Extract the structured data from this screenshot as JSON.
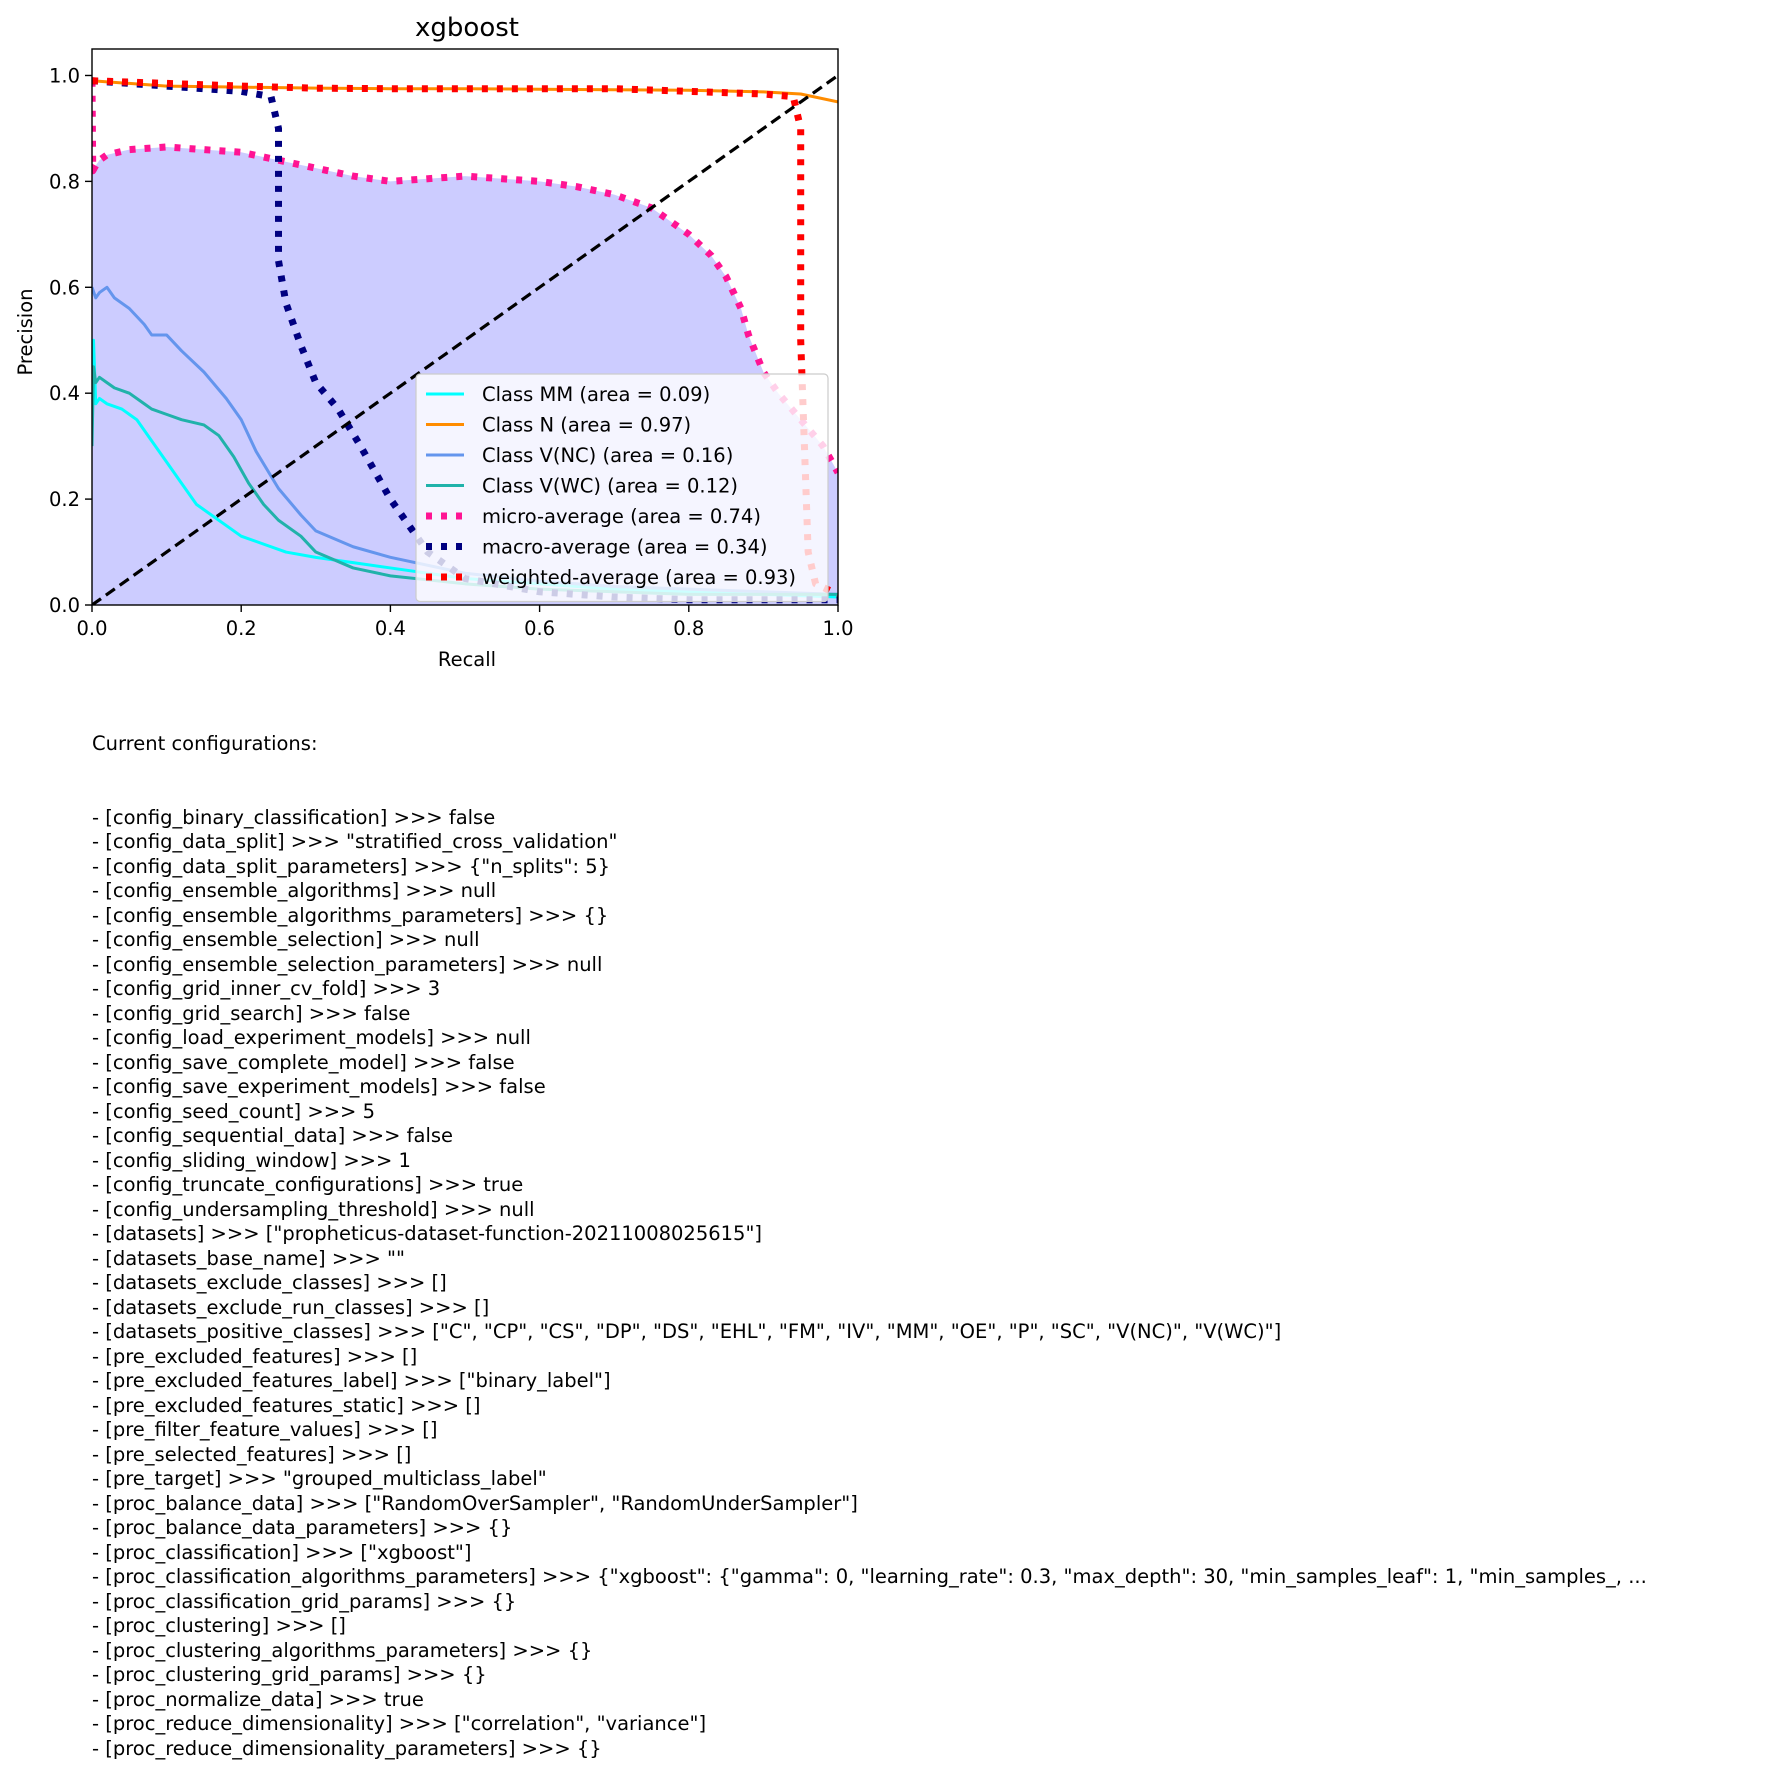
{
  "chart_data": {
    "type": "line",
    "title": "xgboost",
    "xlabel": "Recall",
    "ylabel": "Precision",
    "xlim": [
      0.0,
      1.0
    ],
    "ylim": [
      0.0,
      1.05
    ],
    "xticks": [
      "0.0",
      "0.2",
      "0.4",
      "0.6",
      "0.8",
      "1.0"
    ],
    "yticks": [
      "0.0",
      "0.2",
      "0.4",
      "0.6",
      "0.8",
      "1.0"
    ],
    "legend_position": "lower-right",
    "diagonal": {
      "x": [
        0,
        1
      ],
      "y": [
        0,
        1
      ],
      "color": "#000000",
      "style": "dashed"
    },
    "series": [
      {
        "name": "Class MM (area = 0.09)",
        "color": "#00ffff",
        "style": "solid",
        "x": [
          0.0,
          0.002,
          0.005,
          0.01,
          0.02,
          0.04,
          0.06,
          0.08,
          0.1,
          0.12,
          0.14,
          0.16,
          0.18,
          0.2,
          0.23,
          0.26,
          0.3,
          0.35,
          0.4,
          0.45,
          0.5,
          0.6,
          0.7,
          0.8,
          0.9,
          1.0
        ],
        "y": [
          0.33,
          0.5,
          0.38,
          0.39,
          0.38,
          0.37,
          0.35,
          0.31,
          0.27,
          0.23,
          0.19,
          0.17,
          0.15,
          0.13,
          0.115,
          0.1,
          0.09,
          0.08,
          0.07,
          0.06,
          0.05,
          0.04,
          0.03,
          0.025,
          0.02,
          0.015
        ]
      },
      {
        "name": "Class N (area = 0.97)",
        "color": "#ff8c00",
        "style": "solid",
        "x": [
          0.0,
          0.05,
          0.1,
          0.2,
          0.3,
          0.4,
          0.5,
          0.6,
          0.7,
          0.8,
          0.9,
          0.95,
          1.0
        ],
        "y": [
          0.99,
          0.985,
          0.98,
          0.978,
          0.976,
          0.975,
          0.975,
          0.974,
          0.973,
          0.972,
          0.969,
          0.965,
          0.95
        ]
      },
      {
        "name": "Class V(NC) (area = 0.16)",
        "color": "#6495ed",
        "style": "solid",
        "x": [
          0.0,
          0.005,
          0.01,
          0.02,
          0.03,
          0.05,
          0.07,
          0.08,
          0.1,
          0.12,
          0.15,
          0.18,
          0.2,
          0.22,
          0.25,
          0.28,
          0.3,
          0.35,
          0.4,
          0.5,
          0.6,
          0.7,
          0.8,
          0.9,
          1.0
        ],
        "y": [
          0.6,
          0.58,
          0.59,
          0.6,
          0.58,
          0.56,
          0.53,
          0.51,
          0.51,
          0.48,
          0.44,
          0.39,
          0.35,
          0.29,
          0.22,
          0.17,
          0.14,
          0.11,
          0.09,
          0.06,
          0.045,
          0.035,
          0.03,
          0.025,
          0.02
        ]
      },
      {
        "name": "Class V(WC) (area = 0.12)",
        "color": "#20b2aa",
        "style": "solid",
        "x": [
          0.0,
          0.002,
          0.005,
          0.01,
          0.02,
          0.03,
          0.05,
          0.07,
          0.08,
          0.1,
          0.12,
          0.15,
          0.17,
          0.19,
          0.21,
          0.23,
          0.25,
          0.28,
          0.3,
          0.35,
          0.4,
          0.5,
          0.6,
          0.7,
          0.8,
          0.9,
          1.0
        ],
        "y": [
          0.3,
          0.45,
          0.42,
          0.43,
          0.42,
          0.41,
          0.4,
          0.38,
          0.37,
          0.36,
          0.35,
          0.34,
          0.32,
          0.28,
          0.23,
          0.19,
          0.16,
          0.13,
          0.1,
          0.07,
          0.055,
          0.04,
          0.03,
          0.025,
          0.02,
          0.02,
          0.02
        ]
      },
      {
        "name": "micro-average (area = 0.74)",
        "color": "#ff1493",
        "style": "dotted",
        "fill": "#ccccff",
        "x": [
          0.0,
          0.001,
          0.005,
          0.01,
          0.02,
          0.05,
          0.1,
          0.15,
          0.2,
          0.25,
          0.3,
          0.35,
          0.4,
          0.45,
          0.5,
          0.55,
          0.6,
          0.65,
          0.7,
          0.75,
          0.8,
          0.83,
          0.85,
          0.87,
          0.88,
          0.9,
          0.92,
          0.95,
          0.98,
          1.0
        ],
        "y": [
          0.99,
          0.82,
          0.83,
          0.84,
          0.85,
          0.86,
          0.865,
          0.86,
          0.855,
          0.84,
          0.825,
          0.81,
          0.8,
          0.805,
          0.81,
          0.805,
          0.8,
          0.79,
          0.775,
          0.75,
          0.7,
          0.66,
          0.62,
          0.56,
          0.51,
          0.44,
          0.4,
          0.35,
          0.3,
          0.25
        ]
      },
      {
        "name": "macro-average (area = 0.34)",
        "color": "#000080",
        "style": "dotted",
        "x": [
          0.0,
          0.05,
          0.1,
          0.15,
          0.2,
          0.24,
          0.25,
          0.25,
          0.26,
          0.28,
          0.3,
          0.33,
          0.36,
          0.4,
          0.45,
          0.5,
          0.6,
          0.7,
          0.8,
          0.9,
          1.0
        ],
        "y": [
          0.99,
          0.985,
          0.98,
          0.975,
          0.97,
          0.96,
          0.9,
          0.65,
          0.57,
          0.49,
          0.42,
          0.37,
          0.3,
          0.2,
          0.1,
          0.05,
          0.025,
          0.015,
          0.01,
          0.01,
          0.01
        ]
      },
      {
        "name": "weighted-average (area = 0.93)",
        "color": "#ff0000",
        "style": "dotted",
        "x": [
          0.0,
          0.1,
          0.2,
          0.3,
          0.4,
          0.5,
          0.6,
          0.7,
          0.8,
          0.9,
          0.94,
          0.95,
          0.95,
          0.955,
          0.96,
          0.97,
          1.0
        ],
        "y": [
          0.99,
          0.985,
          0.98,
          0.976,
          0.975,
          0.975,
          0.975,
          0.975,
          0.97,
          0.965,
          0.96,
          0.9,
          0.5,
          0.3,
          0.1,
          0.04,
          0.02
        ]
      }
    ]
  },
  "config": {
    "heading": "Current configurations:",
    "lines": [
      "- [config_binary_classification] >>> false",
      "- [config_data_split] >>> \"stratified_cross_validation\"",
      "- [config_data_split_parameters] >>> {\"n_splits\": 5}",
      "- [config_ensemble_algorithms] >>> null",
      "- [config_ensemble_algorithms_parameters] >>> {}",
      "- [config_ensemble_selection] >>> null",
      "- [config_ensemble_selection_parameters] >>> null",
      "- [config_grid_inner_cv_fold] >>> 3",
      "- [config_grid_search] >>> false",
      "- [config_load_experiment_models] >>> null",
      "- [config_save_complete_model] >>> false",
      "- [config_save_experiment_models] >>> false",
      "- [config_seed_count] >>> 5",
      "- [config_sequential_data] >>> false",
      "- [config_sliding_window] >>> 1",
      "- [config_truncate_configurations] >>> true",
      "- [config_undersampling_threshold] >>> null",
      "- [datasets] >>> [\"propheticus-dataset-function-20211008025615\"]",
      "- [datasets_base_name] >>> \"\"",
      "- [datasets_exclude_classes] >>> []",
      "- [datasets_exclude_run_classes] >>> []",
      "- [datasets_positive_classes] >>> [\"C\", \"CP\", \"CS\", \"DP\", \"DS\", \"EHL\", \"FM\", \"IV\", \"MM\", \"OE\", \"P\", \"SC\", \"V(NC)\", \"V(WC)\"]",
      "- [pre_excluded_features] >>> []",
      "- [pre_excluded_features_label] >>> [\"binary_label\"]",
      "- [pre_excluded_features_static] >>> []",
      "- [pre_filter_feature_values] >>> []",
      "- [pre_selected_features] >>> []",
      "- [pre_target] >>> \"grouped_multiclass_label\"",
      "- [proc_balance_data] >>> [\"RandomOverSampler\", \"RandomUnderSampler\"]",
      "- [proc_balance_data_parameters] >>> {}",
      "- [proc_classification] >>> [\"xgboost\"]",
      "- [proc_classification_algorithms_parameters] >>> {\"xgboost\": {\"gamma\": 0, \"learning_rate\": 0.3, \"max_depth\": 30, \"min_samples_leaf\": 1, \"min_samples_, ...",
      "- [proc_classification_grid_params] >>> {}",
      "- [proc_clustering] >>> []",
      "- [proc_clustering_algorithms_parameters] >>> {}",
      "- [proc_clustering_grid_params] >>> {}",
      "- [proc_normalize_data] >>> true",
      "- [proc_reduce_dimensionality] >>> [\"correlation\", \"variance\"]",
      "- [proc_reduce_dimensionality_parameters] >>> {}"
    ]
  }
}
